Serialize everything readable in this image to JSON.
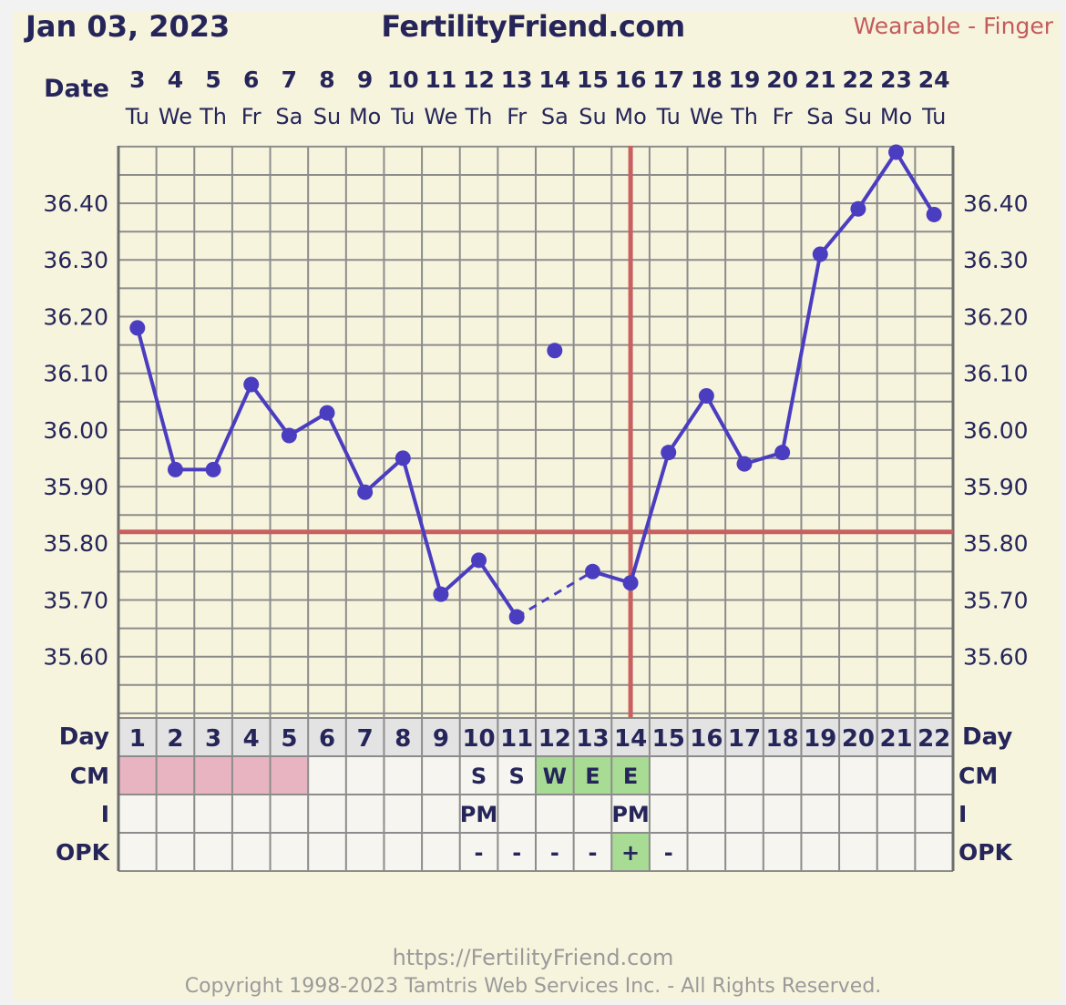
{
  "header": {
    "date": "Jan 03, 2023",
    "site": "FertilityFriend.com",
    "method": "Wearable - Finger"
  },
  "colors": {
    "background": "#f7f4de",
    "line": "#4a3dc0",
    "coverline": "#c96060",
    "grid": "#8c8c8c",
    "text": "#25255a",
    "menses": "#e8b4c2",
    "fertile": "#a8dc94"
  },
  "chart_data": {
    "type": "line",
    "x_header_label": "Date",
    "dates": [
      "3",
      "4",
      "5",
      "6",
      "7",
      "8",
      "9",
      "10",
      "11",
      "12",
      "13",
      "14",
      "15",
      "16",
      "17",
      "18",
      "19",
      "20",
      "21",
      "22",
      "23",
      "24"
    ],
    "weekdays": [
      "Tu",
      "We",
      "Th",
      "Fr",
      "Sa",
      "Su",
      "Mo",
      "Tu",
      "We",
      "Th",
      "Fr",
      "Sa",
      "Su",
      "Mo",
      "Tu",
      "We",
      "Th",
      "Fr",
      "Sa",
      "Su",
      "Mo",
      "Tu"
    ],
    "series": [
      {
        "values": [
          36.18,
          35.93,
          35.93,
          36.08,
          35.99,
          36.03,
          35.89,
          35.95,
          35.71,
          35.77,
          35.67,
          36.14,
          35.75,
          35.73,
          35.96,
          36.06,
          35.94,
          35.96,
          36.31,
          36.39,
          36.49,
          36.38
        ],
        "discarded_index": 11,
        "dashed_segment": [
          10,
          12
        ]
      }
    ],
    "y_ticks": [
      "36.40",
      "36.30",
      "36.20",
      "36.10",
      "36.00",
      "35.90",
      "35.80",
      "35.70",
      "35.60"
    ],
    "ylim": [
      35.53,
      36.61
    ],
    "coverline": 35.82,
    "ovulation_day": 14,
    "grid": true
  },
  "table": {
    "day_label": "Day",
    "days": [
      "1",
      "2",
      "3",
      "4",
      "5",
      "6",
      "7",
      "8",
      "9",
      "10",
      "11",
      "12",
      "13",
      "14",
      "15",
      "16",
      "17",
      "18",
      "19",
      "20",
      "21",
      "22"
    ],
    "rows": [
      {
        "label": "CM",
        "cells": [
          "",
          "",
          "",
          "",
          "",
          "",
          "",
          "",
          "",
          "S",
          "S",
          "W",
          "E",
          "E",
          "",
          "",
          "",
          "",
          "",
          "",
          "",
          ""
        ],
        "fill": [
          "menses",
          "menses",
          "menses",
          "menses",
          "menses",
          "",
          "",
          "",
          "",
          "",
          "",
          "fertile",
          "fertile",
          "fertile",
          "",
          "",
          "",
          "",
          "",
          "",
          "",
          ""
        ]
      },
      {
        "label": "I",
        "cells": [
          "",
          "",
          "",
          "",
          "",
          "",
          "",
          "",
          "",
          "PM",
          "",
          "",
          "",
          "PM",
          "",
          "",
          "",
          "",
          "",
          "",
          "",
          ""
        ],
        "fill": [
          "",
          "",
          "",
          "",
          "",
          "",
          "",
          "",
          "",
          "",
          "",
          "",
          "",
          "",
          "",
          "",
          "",
          "",
          "",
          "",
          "",
          ""
        ]
      },
      {
        "label": "OPK",
        "cells": [
          "",
          "",
          "",
          "",
          "",
          "",
          "",
          "",
          "",
          "-",
          "-",
          "-",
          "-",
          "+",
          "-",
          "",
          "",
          "",
          "",
          "",
          "",
          ""
        ],
        "fill": [
          "",
          "",
          "",
          "",
          "",
          "",
          "",
          "",
          "",
          "",
          "",
          "",
          "",
          "fertile",
          "",
          "",
          "",
          "",
          "",
          "",
          "",
          ""
        ]
      }
    ]
  },
  "footer": {
    "url": "https://FertilityFriend.com",
    "copyright": "Copyright 1998-2023 Tamtris Web Services Inc. - All Rights Reserved."
  }
}
